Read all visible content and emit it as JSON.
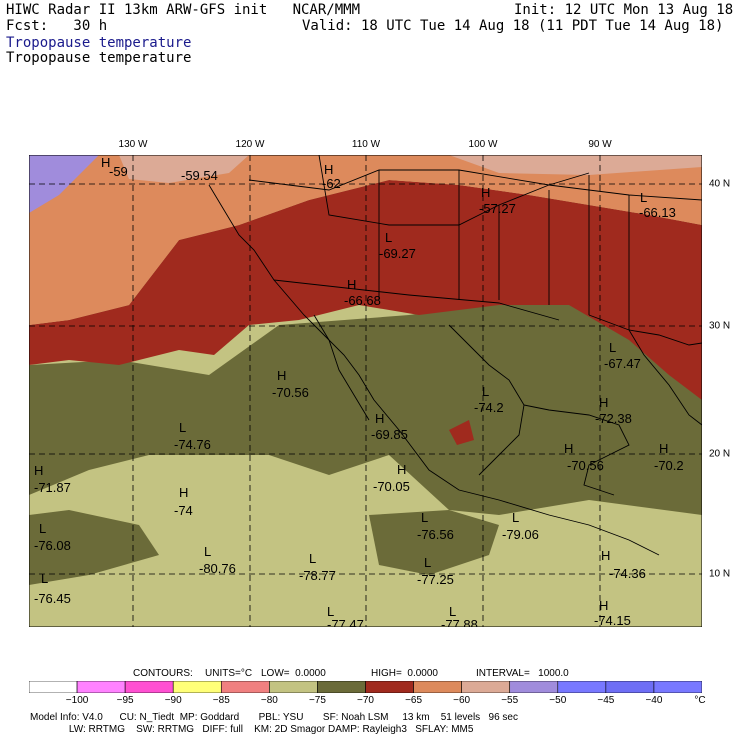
{
  "header": {
    "line1_left": "HIWC Radar II 13km ARW-GFS init   NCAR/MMM",
    "line2_left": "Fcst:   30 h",
    "init": "Init: 12 UTC Mon 13 Aug 18",
    "valid": "Valid: 18 UTC Tue 14 Aug 18 (11 PDT Tue 14 Aug 18)",
    "field_title_blue": "Tropopause temperature",
    "field_title_black": "Tropopause temperature"
  },
  "axes": {
    "lon_labels": [
      "130 W",
      "120 W",
      "110 W",
      "100 W",
      "90 W"
    ],
    "lat_labels": [
      "40 N",
      "30 N",
      "20 N",
      "10 N"
    ]
  },
  "extrema": [
    {
      "type": "H",
      "value": "-59"
    },
    {
      "type": "",
      "value": "-59.54"
    },
    {
      "type": "H",
      "value": "-62"
    },
    {
      "type": "H",
      "value": "-57.27"
    },
    {
      "type": "L",
      "value": "-66.13"
    },
    {
      "type": "L",
      "value": "-69.27"
    },
    {
      "type": "H",
      "value": "-66.68"
    },
    {
      "type": "L",
      "value": "-67.47"
    },
    {
      "type": "H",
      "value": "-70.56"
    },
    {
      "type": "L",
      "value": "-74.2"
    },
    {
      "type": "H",
      "value": "-72.38"
    },
    {
      "type": "L",
      "value": "-74.76"
    },
    {
      "type": "H",
      "value": "-69.85"
    },
    {
      "type": "H",
      "value": "-70.56"
    },
    {
      "type": "H",
      "value": "-70.2"
    },
    {
      "type": "H",
      "value": "-71.87"
    },
    {
      "type": "H",
      "value": "-70.05"
    },
    {
      "type": "H",
      "value": "-74"
    },
    {
      "type": "L",
      "value": "-76.56"
    },
    {
      "type": "L",
      "value": "-79.06"
    },
    {
      "type": "L",
      "value": "-76.08"
    },
    {
      "type": "L",
      "value": "-80.76"
    },
    {
      "type": "L",
      "value": "-78.77"
    },
    {
      "type": "L",
      "value": "-77.25"
    },
    {
      "type": "H",
      "value": "-74.36"
    },
    {
      "type": "L",
      "value": "-76.45"
    },
    {
      "type": "L",
      "value": "-77.47"
    },
    {
      "type": "L",
      "value": "-77.88"
    },
    {
      "type": "H",
      "value": "-74.15"
    }
  ],
  "contours_line": {
    "contours": "CONTOURS:",
    "units": "UNITS=°C",
    "low": "LOW=  0.0000",
    "high": "HIGH=  0.0000",
    "interval": "INTERVAL=   1000.0"
  },
  "colorbar": {
    "colors": [
      "#ffffff",
      "#ff82ff",
      "#ff50d2",
      "#ffff78",
      "#f08080",
      "#c3c382",
      "#6b6b39",
      "#a02a1e",
      "#dd8a5c",
      "#dcaa96",
      "#a08cdc",
      "#7878ff",
      "#6e6ef5",
      "#7878ff"
    ],
    "labels": [
      "−100",
      "−95",
      "−90",
      "−85",
      "−80",
      "−75",
      "−70",
      "−65",
      "−60",
      "−55",
      "−50",
      "−45",
      "−40",
      "°C"
    ]
  },
  "footer": {
    "line1": "Model Info: V4.0      CU: N_Tiedt  MP: Goddard       PBL: YSU       SF: Noah LSM     13 km    51 levels   96 sec",
    "line2": "              LW: RRTMG    SW: RRTMG   DIFF: full    KM: 2D Smagor DAMP: Rayleigh3   SFLAY: MM5"
  },
  "colors": {
    "purple_cold_pool": "#a08cdc",
    "pink_pale": "#dcaa96",
    "orange_warm": "#dd8a5c",
    "red_brown": "#a02a1e",
    "olive_dark": "#6b6b39",
    "olive_light": "#c3c382"
  }
}
